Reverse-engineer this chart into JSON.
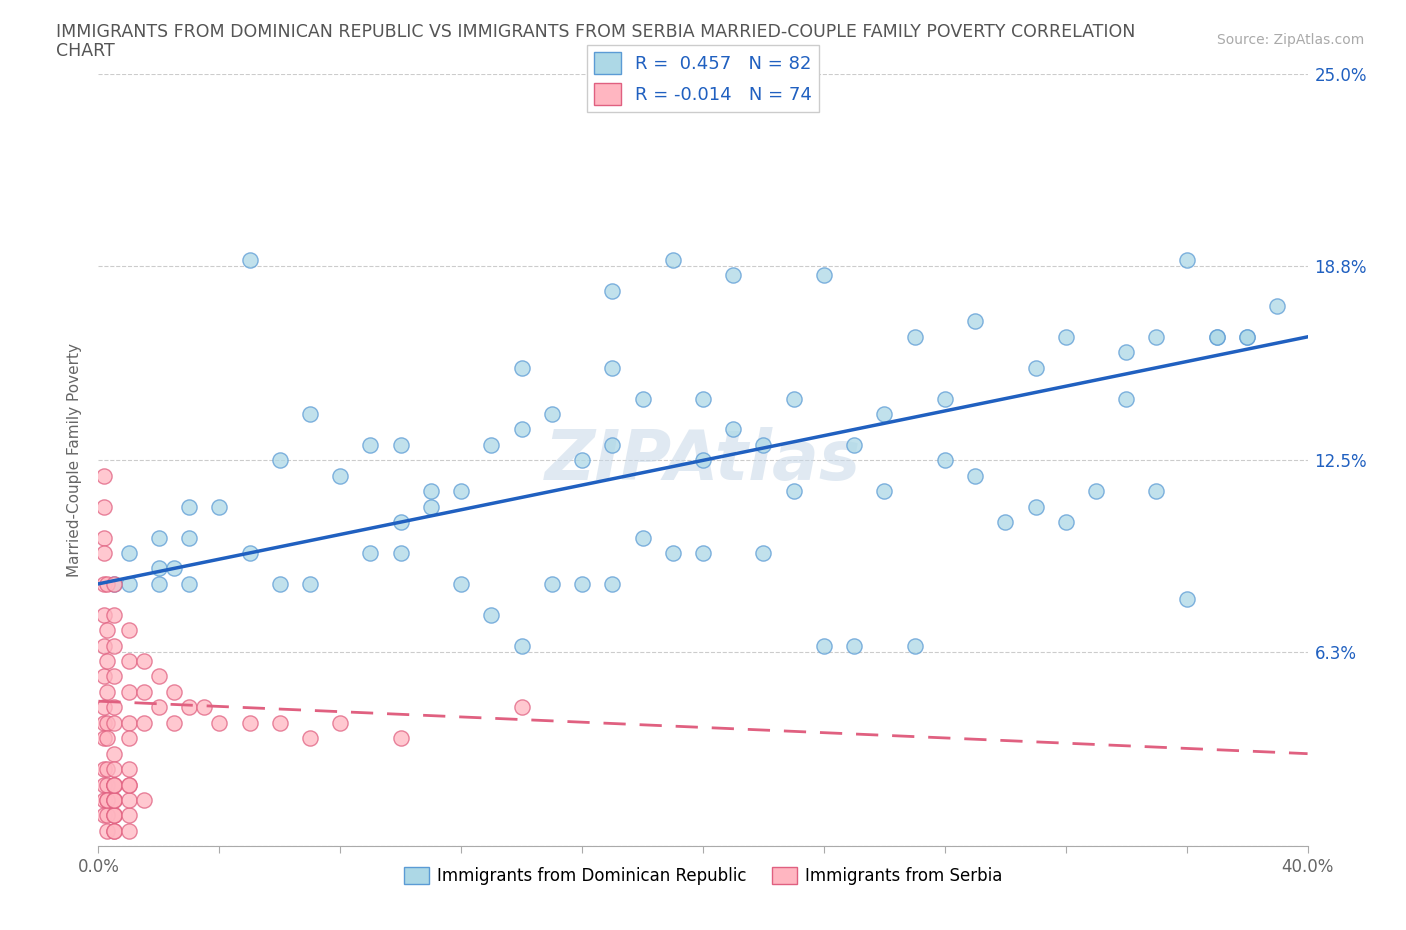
{
  "title_line1": "IMMIGRANTS FROM DOMINICAN REPUBLIC VS IMMIGRANTS FROM SERBIA MARRIED-COUPLE FAMILY POVERTY CORRELATION",
  "title_line2": "CHART",
  "source_text": "Source: ZipAtlas.com",
  "ylabel": "Married-Couple Family Poverty",
  "xlim": [
    0.0,
    0.4
  ],
  "ylim": [
    0.0,
    0.25
  ],
  "xtick_vals": [
    0.0,
    0.04,
    0.08,
    0.12,
    0.16,
    0.2,
    0.24,
    0.28,
    0.32,
    0.36,
    0.4
  ],
  "xtick_labels": [
    "0.0%",
    "",
    "",
    "",
    "",
    "",
    "",
    "",
    "",
    "",
    "40.0%"
  ],
  "ytick_vals": [
    0.0,
    0.063,
    0.125,
    0.188,
    0.25
  ],
  "ytick_labels_right": [
    "",
    "6.3%",
    "12.5%",
    "18.8%",
    "25.0%"
  ],
  "r_dominican": 0.457,
  "n_dominican": 82,
  "r_serbia": -0.014,
  "n_serbia": 74,
  "color_dominican_face": "#ADD8E6",
  "color_dominican_edge": "#5B9BD5",
  "color_serbia_face": "#FFB6C1",
  "color_serbia_edge": "#E06080",
  "line_color_dominican": "#2060C0",
  "line_color_serbia": "#E06080",
  "legend_text_color": "#2060C0",
  "watermark": "ZIPAtlas",
  "legend_label_dominican": "Immigrants from Dominican Republic",
  "legend_label_serbia": "Immigrants from Serbia",
  "dom_line_y0": 0.085,
  "dom_line_y1": 0.165,
  "ser_line_y0": 0.047,
  "ser_line_y1": 0.03,
  "dominican_x": [
    0.005,
    0.01,
    0.01,
    0.02,
    0.02,
    0.02,
    0.025,
    0.03,
    0.03,
    0.03,
    0.04,
    0.05,
    0.05,
    0.06,
    0.06,
    0.07,
    0.07,
    0.08,
    0.09,
    0.09,
    0.1,
    0.1,
    0.1,
    0.11,
    0.11,
    0.12,
    0.12,
    0.13,
    0.13,
    0.14,
    0.14,
    0.15,
    0.15,
    0.16,
    0.16,
    0.17,
    0.17,
    0.18,
    0.18,
    0.19,
    0.2,
    0.2,
    0.21,
    0.22,
    0.22,
    0.23,
    0.24,
    0.25,
    0.25,
    0.26,
    0.27,
    0.28,
    0.29,
    0.3,
    0.31,
    0.32,
    0.33,
    0.34,
    0.35,
    0.36,
    0.36,
    0.37,
    0.38,
    0.14,
    0.17,
    0.2,
    0.23,
    0.26,
    0.17,
    0.19,
    0.21,
    0.24,
    0.27,
    0.29,
    0.32,
    0.35,
    0.38,
    0.28,
    0.31,
    0.34,
    0.37,
    0.39
  ],
  "dominican_y": [
    0.085,
    0.085,
    0.095,
    0.085,
    0.09,
    0.1,
    0.09,
    0.1,
    0.11,
    0.085,
    0.11,
    0.19,
    0.095,
    0.125,
    0.085,
    0.14,
    0.085,
    0.12,
    0.13,
    0.095,
    0.13,
    0.105,
    0.095,
    0.115,
    0.11,
    0.115,
    0.085,
    0.13,
    0.075,
    0.135,
    0.065,
    0.14,
    0.085,
    0.125,
    0.085,
    0.13,
    0.085,
    0.145,
    0.1,
    0.095,
    0.125,
    0.095,
    0.135,
    0.13,
    0.095,
    0.115,
    0.065,
    0.13,
    0.065,
    0.115,
    0.065,
    0.125,
    0.12,
    0.105,
    0.11,
    0.105,
    0.115,
    0.16,
    0.115,
    0.19,
    0.08,
    0.165,
    0.165,
    0.155,
    0.155,
    0.145,
    0.145,
    0.14,
    0.18,
    0.19,
    0.185,
    0.185,
    0.165,
    0.17,
    0.165,
    0.165,
    0.165,
    0.145,
    0.155,
    0.145,
    0.165,
    0.175
  ],
  "serbia_x": [
    0.002,
    0.002,
    0.002,
    0.002,
    0.002,
    0.002,
    0.002,
    0.002,
    0.002,
    0.002,
    0.002,
    0.002,
    0.002,
    0.002,
    0.002,
    0.003,
    0.003,
    0.003,
    0.003,
    0.003,
    0.003,
    0.003,
    0.003,
    0.003,
    0.005,
    0.005,
    0.005,
    0.005,
    0.005,
    0.005,
    0.005,
    0.005,
    0.005,
    0.005,
    0.005,
    0.01,
    0.01,
    0.01,
    0.01,
    0.01,
    0.01,
    0.01,
    0.015,
    0.015,
    0.015,
    0.02,
    0.02,
    0.025,
    0.025,
    0.03,
    0.035,
    0.04,
    0.05,
    0.06,
    0.07,
    0.08,
    0.1,
    0.14,
    0.003,
    0.003,
    0.003,
    0.005,
    0.005,
    0.005,
    0.005,
    0.005,
    0.005,
    0.005,
    0.005,
    0.01,
    0.01,
    0.01,
    0.01,
    0.015
  ],
  "serbia_y": [
    0.12,
    0.11,
    0.1,
    0.095,
    0.085,
    0.075,
    0.065,
    0.055,
    0.045,
    0.04,
    0.035,
    0.025,
    0.02,
    0.015,
    0.01,
    0.085,
    0.07,
    0.06,
    0.05,
    0.04,
    0.035,
    0.025,
    0.02,
    0.015,
    0.085,
    0.075,
    0.065,
    0.055,
    0.045,
    0.04,
    0.03,
    0.025,
    0.02,
    0.015,
    0.01,
    0.07,
    0.06,
    0.05,
    0.04,
    0.035,
    0.025,
    0.02,
    0.06,
    0.05,
    0.04,
    0.055,
    0.045,
    0.05,
    0.04,
    0.045,
    0.045,
    0.04,
    0.04,
    0.04,
    0.035,
    0.04,
    0.035,
    0.045,
    0.005,
    0.01,
    0.015,
    0.005,
    0.005,
    0.01,
    0.01,
    0.015,
    0.015,
    0.02,
    0.02,
    0.005,
    0.01,
    0.015,
    0.02,
    0.015
  ]
}
